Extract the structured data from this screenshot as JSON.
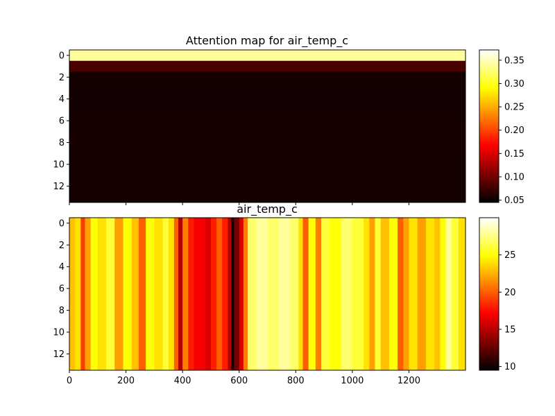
{
  "chart_data": [
    {
      "type": "heatmap",
      "title": "Attention map for air_temp_c",
      "xlabel": "",
      "ylabel": "",
      "colormap": "hot",
      "xlim": [
        0,
        1400
      ],
      "ylim": [
        13.5,
        -0.5
      ],
      "y_ticks": [
        "0",
        "2",
        "4",
        "6",
        "8",
        "10",
        "12"
      ],
      "x_ticks_shown": false,
      "rows": 14,
      "row_values": [
        0.34,
        0.08,
        0.055,
        0.054,
        0.054,
        0.054,
        0.055,
        0.056,
        0.056,
        0.055,
        0.055,
        0.055,
        0.055,
        0.055
      ],
      "colorbar": {
        "min": 0.045,
        "max": 0.372,
        "ticks": [
          "0.05",
          "0.10",
          "0.15",
          "0.20",
          "0.25",
          "0.30",
          "0.35"
        ]
      }
    },
    {
      "type": "heatmap",
      "title": "air_temp_c",
      "xlabel": "",
      "ylabel": "",
      "colormap": "hot",
      "xlim": [
        0,
        1400
      ],
      "ylim": [
        13.5,
        -0.5
      ],
      "x_ticks": [
        "0",
        "200",
        "400",
        "600",
        "800",
        "1000",
        "1200"
      ],
      "y_ticks": [
        "0",
        "2",
        "4",
        "6",
        "8",
        "10",
        "12"
      ],
      "column_profile": [
        {
          "x": 0,
          "v": 23
        },
        {
          "x": 20,
          "v": 24
        },
        {
          "x": 40,
          "v": 19
        },
        {
          "x": 55,
          "v": 22
        },
        {
          "x": 75,
          "v": 25
        },
        {
          "x": 100,
          "v": 24
        },
        {
          "x": 130,
          "v": 26
        },
        {
          "x": 160,
          "v": 22
        },
        {
          "x": 190,
          "v": 25
        },
        {
          "x": 220,
          "v": 23
        },
        {
          "x": 245,
          "v": 20
        },
        {
          "x": 270,
          "v": 25
        },
        {
          "x": 300,
          "v": 24
        },
        {
          "x": 330,
          "v": 26
        },
        {
          "x": 350,
          "v": 24
        },
        {
          "x": 370,
          "v": 20
        },
        {
          "x": 385,
          "v": 15
        },
        {
          "x": 400,
          "v": 21
        },
        {
          "x": 420,
          "v": 18
        },
        {
          "x": 440,
          "v": 17
        },
        {
          "x": 460,
          "v": 17
        },
        {
          "x": 480,
          "v": 16
        },
        {
          "x": 500,
          "v": 18
        },
        {
          "x": 520,
          "v": 20
        },
        {
          "x": 540,
          "v": 18
        },
        {
          "x": 560,
          "v": 15
        },
        {
          "x": 572,
          "v": 10
        },
        {
          "x": 582,
          "v": 13
        },
        {
          "x": 600,
          "v": 16
        },
        {
          "x": 615,
          "v": 21
        },
        {
          "x": 630,
          "v": 27
        },
        {
          "x": 660,
          "v": 28
        },
        {
          "x": 700,
          "v": 27
        },
        {
          "x": 740,
          "v": 28
        },
        {
          "x": 780,
          "v": 27
        },
        {
          "x": 810,
          "v": 24
        },
        {
          "x": 825,
          "v": 20
        },
        {
          "x": 845,
          "v": 25
        },
        {
          "x": 870,
          "v": 21
        },
        {
          "x": 890,
          "v": 26
        },
        {
          "x": 920,
          "v": 25
        },
        {
          "x": 960,
          "v": 27
        },
        {
          "x": 1000,
          "v": 26
        },
        {
          "x": 1040,
          "v": 24
        },
        {
          "x": 1060,
          "v": 22
        },
        {
          "x": 1080,
          "v": 26
        },
        {
          "x": 1100,
          "v": 23
        },
        {
          "x": 1130,
          "v": 25
        },
        {
          "x": 1160,
          "v": 20
        },
        {
          "x": 1180,
          "v": 22
        },
        {
          "x": 1200,
          "v": 24
        },
        {
          "x": 1230,
          "v": 22
        },
        {
          "x": 1260,
          "v": 24
        },
        {
          "x": 1290,
          "v": 23
        },
        {
          "x": 1310,
          "v": 25
        },
        {
          "x": 1330,
          "v": 28
        },
        {
          "x": 1350,
          "v": 26
        },
        {
          "x": 1375,
          "v": 24
        },
        {
          "x": 1400,
          "v": 25
        }
      ],
      "colorbar": {
        "min": 9.5,
        "max": 30,
        "ticks": [
          "10",
          "15",
          "20",
          "25"
        ]
      }
    }
  ]
}
